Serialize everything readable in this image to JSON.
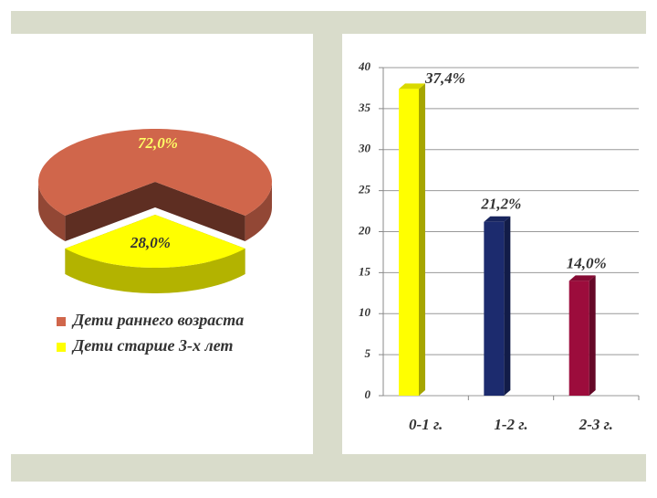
{
  "chart_data": [
    {
      "type": "pie",
      "categories": [
        "Дети раннего возраста",
        "Дети старше 3-х лет"
      ],
      "values": [
        72.0,
        28.0
      ],
      "value_labels": [
        "72,0%",
        "28,0%"
      ],
      "colors": [
        "#d0664b",
        "#ffff00"
      ]
    },
    {
      "type": "bar",
      "categories": [
        "0-1 г.",
        "1-2 г.",
        "2-3 г."
      ],
      "values": [
        37.4,
        21.2,
        14.0
      ],
      "value_labels": [
        "37,4%",
        "21,2%",
        "14,0%"
      ],
      "colors": [
        "#ffff00",
        "#1c2b6e",
        "#9c0c3c"
      ],
      "ylim": [
        0,
        40
      ],
      "yticks": [
        0,
        5,
        10,
        15,
        20,
        25,
        30,
        35,
        40
      ],
      "grid": true
    }
  ]
}
